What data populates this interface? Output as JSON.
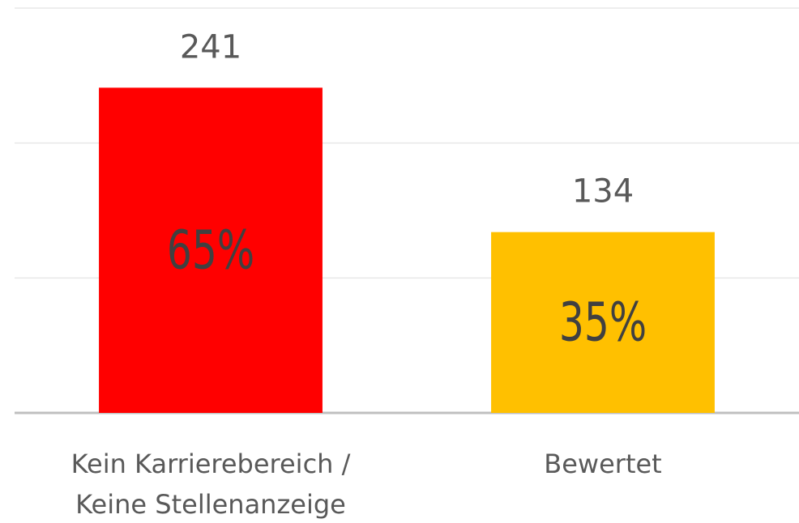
{
  "chart_data": {
    "type": "bar",
    "categories": [
      "Kein Karrierebereich /\nKeine Stellenanzeige",
      "Bewertet"
    ],
    "values": [
      241,
      134
    ],
    "shares": [
      65,
      35
    ],
    "share_labels": [
      "65%",
      "35%"
    ],
    "colors": [
      "#ff0000",
      "#ffc000"
    ],
    "ylim": [
      0,
      300
    ],
    "yticks": [
      0,
      100,
      200,
      300
    ],
    "grid": true
  }
}
